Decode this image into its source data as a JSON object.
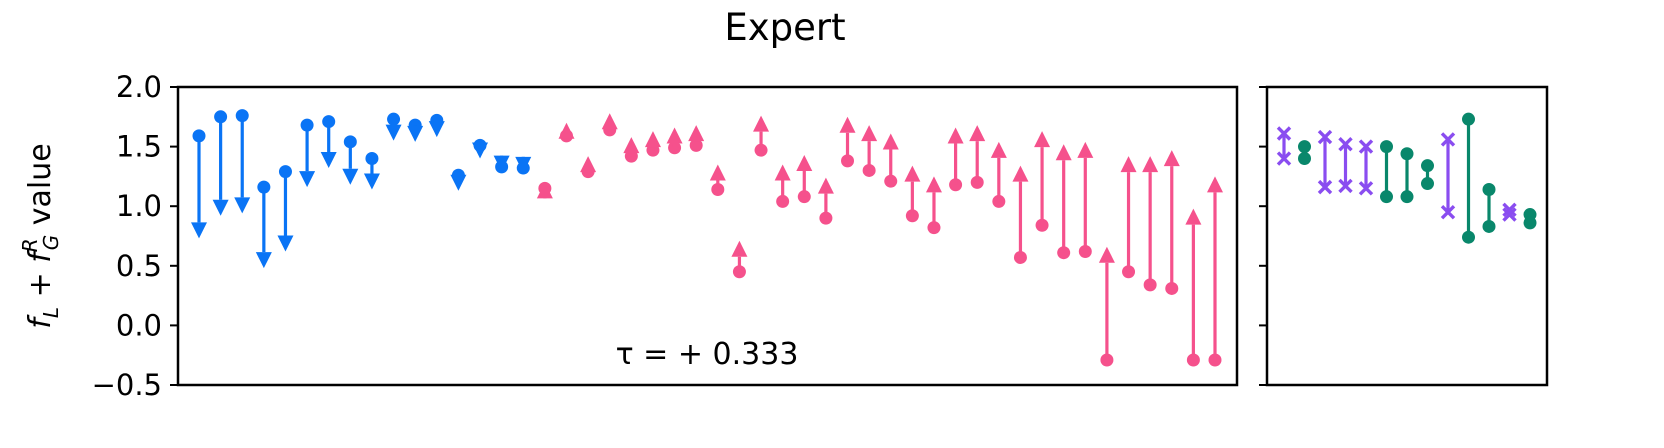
{
  "figure": {
    "title": "Expert",
    "ylabel": {
      "f": "f",
      "sub_L": "L",
      "plus": " + ",
      "sup_R": "R",
      "sub_G": "G",
      "rest": " value"
    },
    "annotation": "τ = + 0.333"
  },
  "colors": {
    "decrease": "#0a74f5",
    "increase": "#f5518c",
    "purple": "#8a4df0",
    "green": "#09876b"
  },
  "chart_data": {
    "type": "scatter",
    "title": "Expert",
    "ylabel": "f_L + f_G^R value",
    "ylim": [
      -0.5,
      2.0
    ],
    "yticks": [
      -0.5,
      0.0,
      0.5,
      1.0,
      1.5,
      2.0
    ],
    "yticklabels": [
      "−0.5",
      "0.0",
      "0.5",
      "1.0",
      "1.5",
      "2.0"
    ],
    "grid": false,
    "annotation": "τ = + 0.333",
    "main_panel": {
      "arrows": [
        {
          "from": 1.59,
          "to": 0.73,
          "dir": "down"
        },
        {
          "from": 1.75,
          "to": 0.92,
          "dir": "down"
        },
        {
          "from": 1.76,
          "to": 0.94,
          "dir": "down"
        },
        {
          "from": 1.16,
          "to": 0.48,
          "dir": "down"
        },
        {
          "from": 1.29,
          "to": 0.62,
          "dir": "down"
        },
        {
          "from": 1.68,
          "to": 1.16,
          "dir": "down"
        },
        {
          "from": 1.71,
          "to": 1.32,
          "dir": "down"
        },
        {
          "from": 1.54,
          "to": 1.18,
          "dir": "down"
        },
        {
          "from": 1.4,
          "to": 1.14,
          "dir": "down"
        },
        {
          "from": 1.73,
          "to": 1.55,
          "dir": "down"
        },
        {
          "from": 1.68,
          "to": 1.54,
          "dir": "down"
        },
        {
          "from": 1.72,
          "to": 1.58,
          "dir": "down"
        },
        {
          "from": 1.26,
          "to": 1.13,
          "dir": "down"
        },
        {
          "from": 1.51,
          "to": 1.4,
          "dir": "down"
        },
        {
          "from": 1.33,
          "to": 1.29,
          "dir": "down"
        },
        {
          "from": 1.32,
          "to": 1.28,
          "dir": "down"
        },
        {
          "from": 1.15,
          "to": 1.2,
          "dir": "up"
        },
        {
          "from": 1.59,
          "to": 1.7,
          "dir": "up"
        },
        {
          "from": 1.29,
          "to": 1.42,
          "dir": "up"
        },
        {
          "from": 1.64,
          "to": 1.78,
          "dir": "up"
        },
        {
          "from": 1.42,
          "to": 1.58,
          "dir": "up"
        },
        {
          "from": 1.47,
          "to": 1.63,
          "dir": "up"
        },
        {
          "from": 1.49,
          "to": 1.66,
          "dir": "up"
        },
        {
          "from": 1.51,
          "to": 1.68,
          "dir": "up"
        },
        {
          "from": 1.14,
          "to": 1.35,
          "dir": "up"
        },
        {
          "from": 0.45,
          "to": 0.71,
          "dir": "up"
        },
        {
          "from": 1.47,
          "to": 1.76,
          "dir": "up"
        },
        {
          "from": 1.04,
          "to": 1.35,
          "dir": "up"
        },
        {
          "from": 1.08,
          "to": 1.43,
          "dir": "up"
        },
        {
          "from": 0.9,
          "to": 1.24,
          "dir": "up"
        },
        {
          "from": 1.38,
          "to": 1.75,
          "dir": "up"
        },
        {
          "from": 1.3,
          "to": 1.68,
          "dir": "up"
        },
        {
          "from": 1.21,
          "to": 1.61,
          "dir": "up"
        },
        {
          "from": 0.92,
          "to": 1.34,
          "dir": "up"
        },
        {
          "from": 0.82,
          "to": 1.25,
          "dir": "up"
        },
        {
          "from": 1.18,
          "to": 1.66,
          "dir": "up"
        },
        {
          "from": 1.2,
          "to": 1.68,
          "dir": "up"
        },
        {
          "from": 1.04,
          "to": 1.54,
          "dir": "up"
        },
        {
          "from": 0.57,
          "to": 1.34,
          "dir": "up"
        },
        {
          "from": 0.84,
          "to": 1.63,
          "dir": "up"
        },
        {
          "from": 0.61,
          "to": 1.52,
          "dir": "up"
        },
        {
          "from": 0.62,
          "to": 1.54,
          "dir": "up"
        },
        {
          "from": -0.29,
          "to": 0.66,
          "dir": "up"
        },
        {
          "from": 0.45,
          "to": 1.42,
          "dir": "up"
        },
        {
          "from": 0.34,
          "to": 1.42,
          "dir": "up"
        },
        {
          "from": 0.31,
          "to": 1.47,
          "dir": "up"
        },
        {
          "from": -0.29,
          "to": 0.98,
          "dir": "up"
        },
        {
          "from": -0.29,
          "to": 1.25,
          "dir": "up"
        }
      ]
    },
    "side_panel": {
      "pairs": [
        {
          "top": 1.61,
          "bottom": 1.4,
          "marker": "x",
          "color": "purple"
        },
        {
          "top": 1.5,
          "bottom": 1.4,
          "marker": "o",
          "color": "green"
        },
        {
          "top": 1.58,
          "bottom": 1.16,
          "marker": "x",
          "color": "purple"
        },
        {
          "top": 1.52,
          "bottom": 1.17,
          "marker": "x",
          "color": "purple"
        },
        {
          "top": 1.5,
          "bottom": 1.15,
          "marker": "x",
          "color": "purple"
        },
        {
          "top": 1.5,
          "bottom": 1.08,
          "marker": "o",
          "color": "green"
        },
        {
          "top": 1.44,
          "bottom": 1.08,
          "marker": "o",
          "color": "green"
        },
        {
          "top": 1.34,
          "bottom": 1.19,
          "marker": "o",
          "color": "green"
        },
        {
          "top": 1.56,
          "bottom": 0.95,
          "marker": "x",
          "color": "purple"
        },
        {
          "top": 1.73,
          "bottom": 0.74,
          "marker": "o",
          "color": "green"
        },
        {
          "top": 1.14,
          "bottom": 0.83,
          "marker": "o",
          "color": "green"
        },
        {
          "top": 0.97,
          "bottom": 0.93,
          "marker": "x",
          "color": "purple"
        },
        {
          "top": 0.93,
          "bottom": 0.86,
          "marker": "o",
          "color": "green"
        }
      ]
    }
  }
}
